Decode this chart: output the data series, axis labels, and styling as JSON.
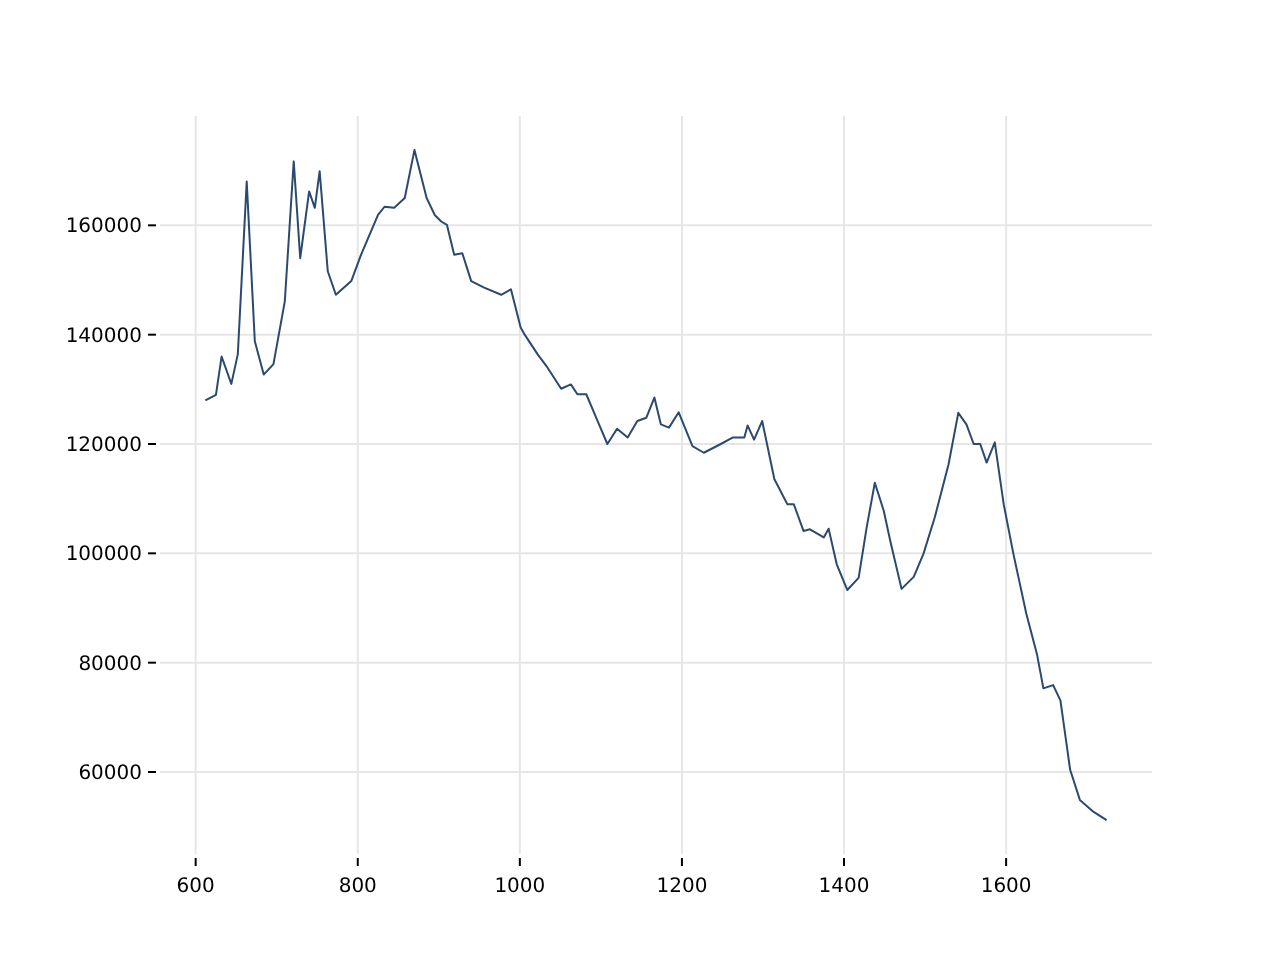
{
  "chart_data": {
    "type": "line",
    "xlim": [
      556,
      1780
    ],
    "ylim": [
      45000,
      180000
    ],
    "xticks": [
      600,
      800,
      1000,
      1200,
      1400,
      1600
    ],
    "yticks": [
      60000,
      80000,
      100000,
      120000,
      140000,
      160000
    ],
    "grid": true,
    "series": [
      {
        "color": "#2b4a6f",
        "x": [
          612,
          625,
          632,
          644,
          652,
          663,
          673,
          684,
          696,
          710,
          721,
          729,
          740,
          747,
          753,
          763,
          773,
          792,
          804,
          825,
          833,
          845,
          858,
          870,
          873,
          885,
          895,
          903,
          910,
          919,
          929,
          940,
          956,
          977,
          989,
          1001,
          1006,
          1022,
          1034,
          1051,
          1063,
          1071,
          1082,
          1096,
          1108,
          1120,
          1133,
          1145,
          1156,
          1166,
          1174,
          1184,
          1196,
          1213,
          1227,
          1248,
          1263,
          1277,
          1281,
          1289,
          1299,
          1314,
          1330,
          1338,
          1350,
          1358,
          1375,
          1381,
          1391,
          1404,
          1418,
          1428,
          1438,
          1449,
          1457,
          1471,
          1486,
          1498,
          1512,
          1529,
          1541,
          1551,
          1560,
          1568,
          1576,
          1586,
          1597,
          1609,
          1625,
          1638,
          1646,
          1658,
          1667,
          1679,
          1691,
          1708,
          1724
        ],
        "values": [
          128000,
          129000,
          136000,
          131000,
          136400,
          168000,
          138800,
          132700,
          134600,
          146100,
          171700,
          154000,
          166200,
          163200,
          169900,
          151600,
          147300,
          149800,
          154600,
          161900,
          163400,
          163200,
          165000,
          173800,
          172000,
          165000,
          161900,
          160700,
          160100,
          154600,
          154900,
          149800,
          148600,
          147300,
          148300,
          141300,
          140000,
          136400,
          134000,
          130100,
          130900,
          129100,
          129100,
          124200,
          120000,
          122800,
          121200,
          124200,
          124800,
          128500,
          123600,
          123000,
          125800,
          119600,
          118400,
          120000,
          121200,
          121200,
          123400,
          120800,
          124200,
          113600,
          109000,
          109000,
          104100,
          104400,
          102900,
          104500,
          98000,
          93300,
          95500,
          104800,
          112900,
          107800,
          102300,
          93500,
          95700,
          99900,
          106600,
          116300,
          125700,
          123600,
          120000,
          120000,
          116600,
          120300,
          109000,
          99900,
          88900,
          81600,
          75300,
          75900,
          73100,
          60400,
          54900,
          52700,
          51200
        ]
      }
    ]
  }
}
